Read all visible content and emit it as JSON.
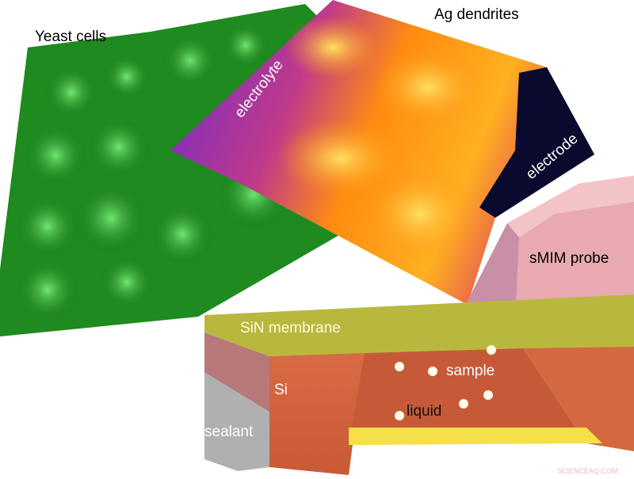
{
  "labels": {
    "yeast": "Yeast cells",
    "ag": "Ag dendrites",
    "electrolyte": "electrolyte",
    "electrode": "electrode",
    "probe": "sMIM probe",
    "membrane": "SiN membrane",
    "si": "Si",
    "sample": "sample",
    "liquid": "liquid",
    "sealant": "sealant"
  },
  "watermark": "SCIENCEAQ.COM",
  "colors": {
    "yeast": "#2fb52f",
    "dendrite_high": "#ffc21a",
    "dendrite_low": "#7a2bd6",
    "electrode": "#0a0a2e",
    "probe": "#e8aab0",
    "membrane": "#b9b83e",
    "si": "#d4673f",
    "liquid": "#f5e04a",
    "sealant": "#b0b0b0"
  }
}
